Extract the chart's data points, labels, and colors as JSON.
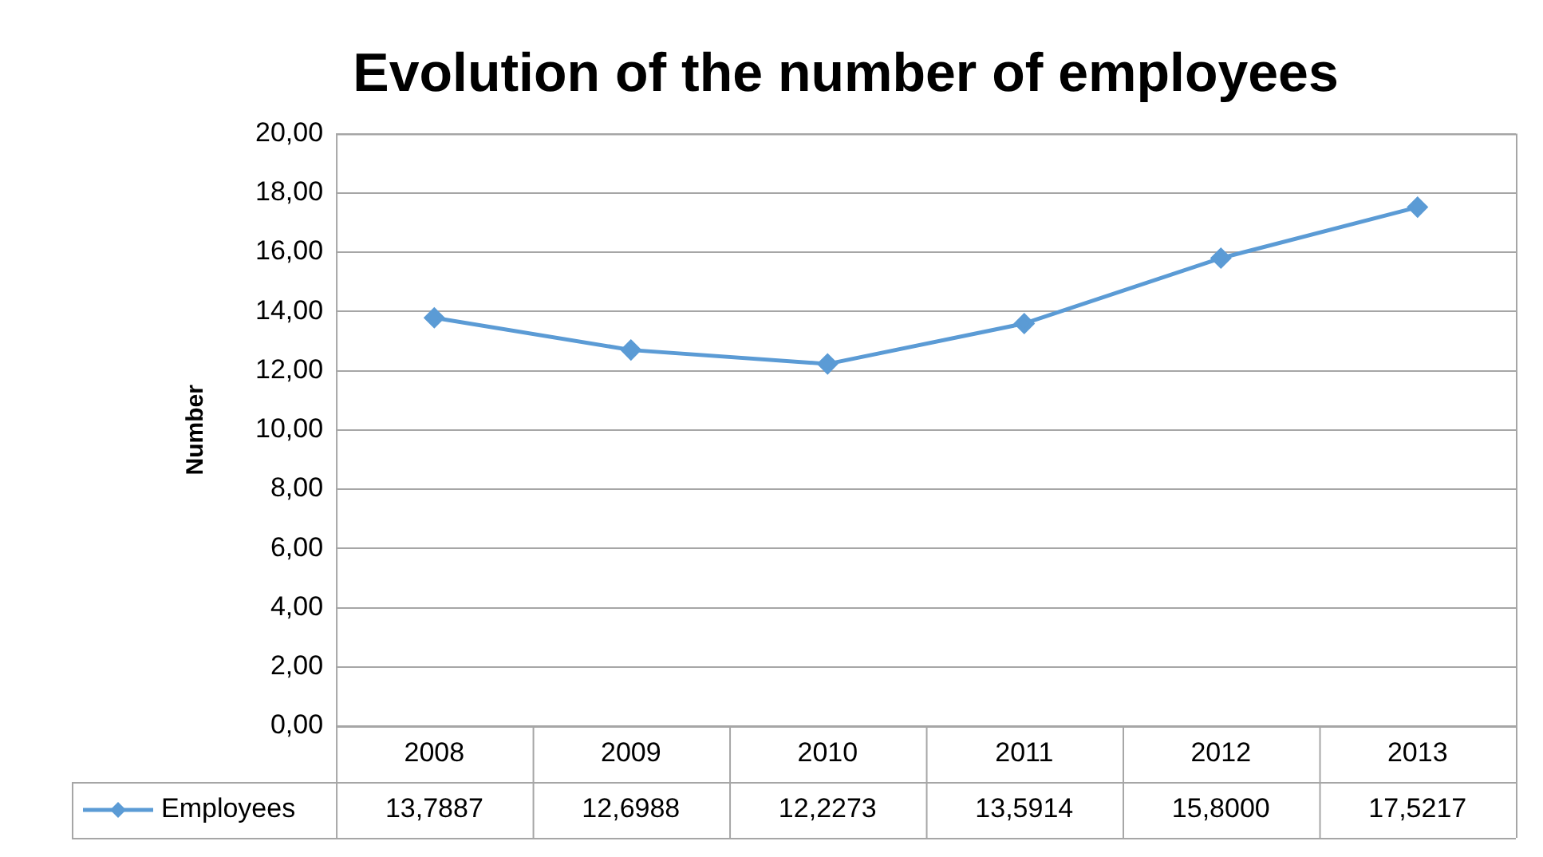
{
  "chart_data": {
    "type": "line",
    "title": "Evolution of the number of employees",
    "ylabel": "Number",
    "categories": [
      "2008",
      "2009",
      "2010",
      "2011",
      "2012",
      "2013"
    ],
    "series": [
      {
        "name": "Employees",
        "color": "#5b9bd5",
        "values": [
          13.7887,
          12.6988,
          12.2273,
          13.5914,
          15.8,
          17.5217
        ],
        "value_labels": [
          "13,7887",
          "12,6988",
          "12,2273",
          "13,5914",
          "15,8000",
          "17,5217"
        ]
      }
    ],
    "ylim": [
      0,
      20
    ],
    "yticks": [
      {
        "value": 0,
        "label": "0,00"
      },
      {
        "value": 2,
        "label": "2,00"
      },
      {
        "value": 4,
        "label": "4,00"
      },
      {
        "value": 6,
        "label": "6,00"
      },
      {
        "value": 8,
        "label": "8,00"
      },
      {
        "value": 10,
        "label": "10,00"
      },
      {
        "value": 12,
        "label": "12,00"
      },
      {
        "value": 14,
        "label": "14,00"
      },
      {
        "value": 16,
        "label": "16,00"
      },
      {
        "value": 18,
        "label": "18,00"
      },
      {
        "value": 20,
        "label": "20,00"
      }
    ],
    "grid": "y",
    "marker": "diamond",
    "line_style": "solid"
  }
}
